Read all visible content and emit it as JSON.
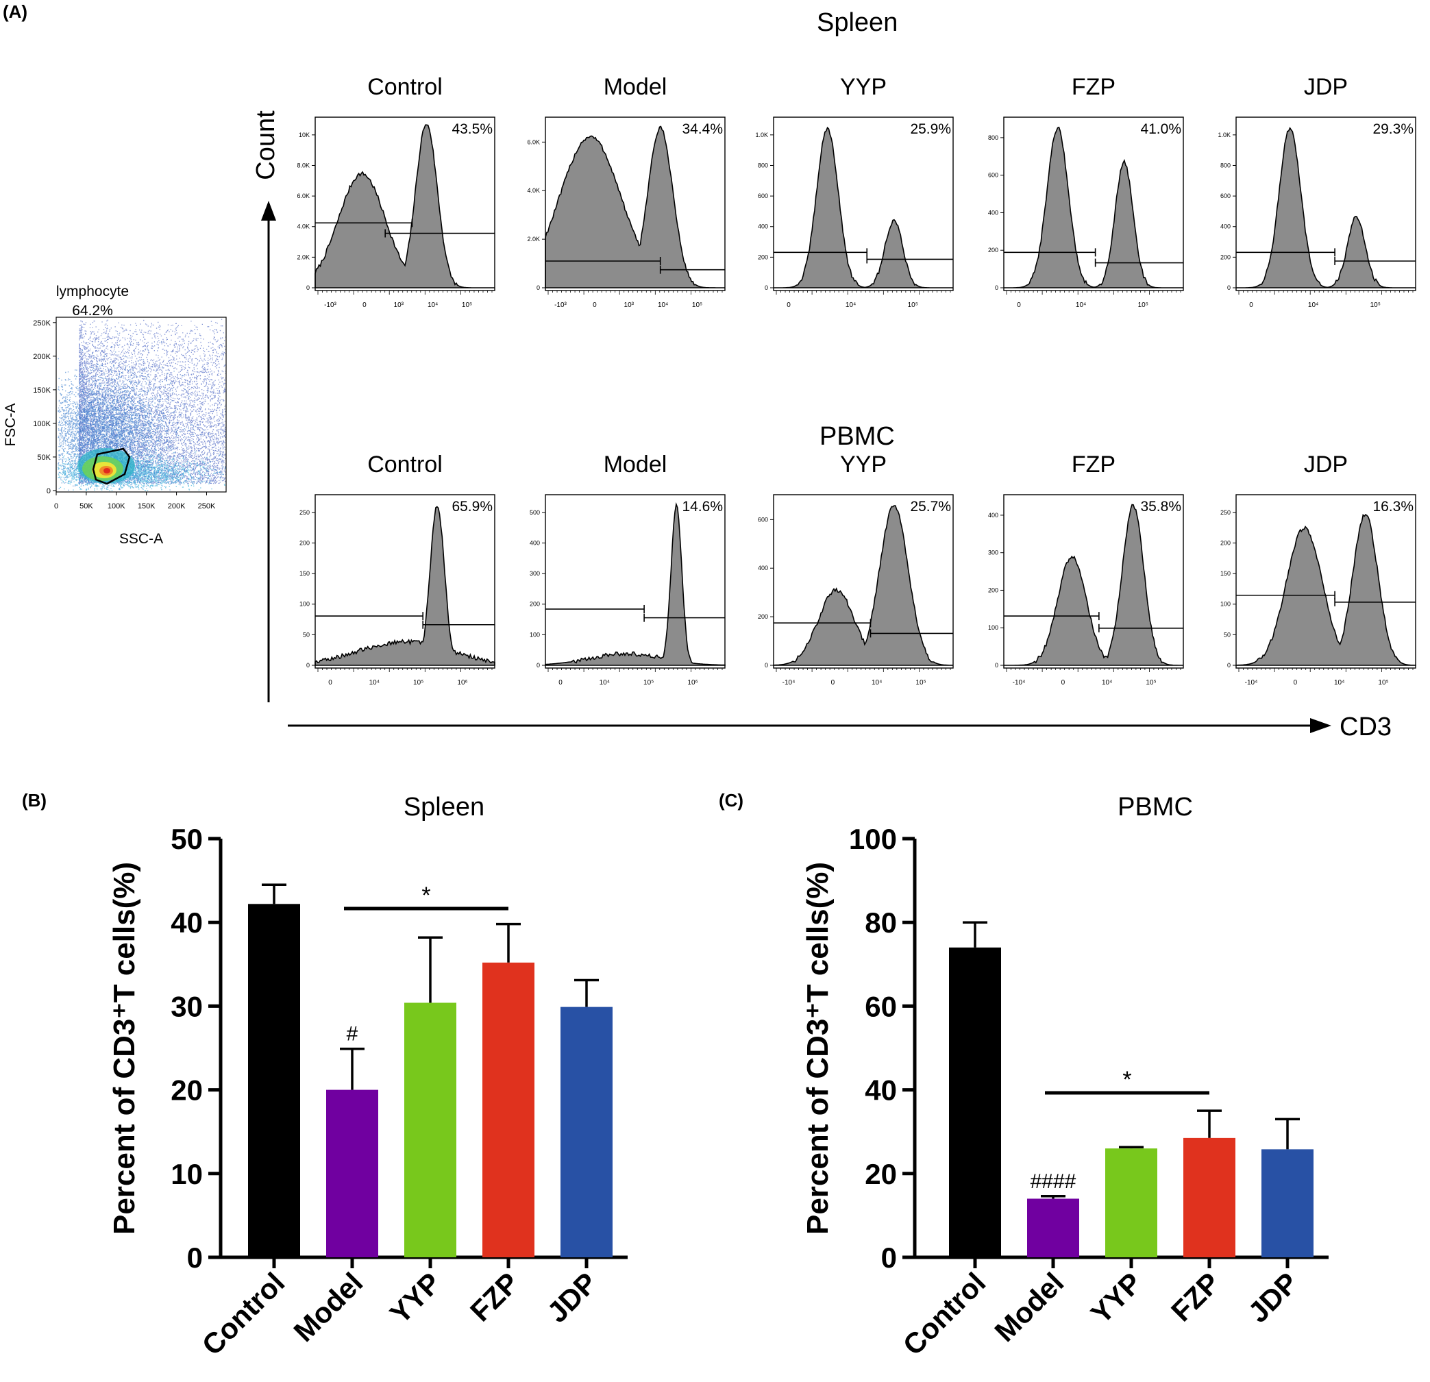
{
  "panel_labels": {
    "a": "(A)",
    "b": "(B)",
    "c": "(C)"
  },
  "section_titles": {
    "spleen": "Spleen",
    "pbmc": "PBMC"
  },
  "axes": {
    "count": "Count",
    "cd3": "CD3"
  },
  "scatter": {
    "gate_name": "lymphocyte",
    "gate_percent": "64.2%",
    "xlabel": "SSC-A",
    "ylabel": "FSC-A",
    "x_ticks": [
      "0",
      "50K",
      "100K",
      "150K",
      "200K",
      "250K"
    ],
    "y_ticks": [
      "0",
      "50K",
      "100K",
      "150K",
      "200K",
      "250K"
    ]
  },
  "histograms": {
    "spleen": [
      {
        "group": "Control",
        "percent": "43.5%",
        "y_ticks": [
          "0",
          "2.0K",
          "4.0K",
          "6.0K",
          "8.0K",
          "10K"
        ],
        "x_ticks": [
          "-10³",
          "0",
          "10³",
          "10⁴",
          "10⁵"
        ]
      },
      {
        "group": "Model",
        "percent": "34.4%",
        "y_ticks": [
          "0",
          "2.0K",
          "4.0K",
          "6.0K"
        ],
        "x_ticks": [
          "-10³",
          "0",
          "10³",
          "10⁴",
          "10⁵"
        ]
      },
      {
        "group": "YYP",
        "percent": "25.9%",
        "y_ticks": [
          "0",
          "200",
          "400",
          "600",
          "800",
          "1.0K"
        ],
        "x_ticks": [
          "0",
          "10⁴",
          "10⁵"
        ]
      },
      {
        "group": "FZP",
        "percent": "41.0%",
        "y_ticks": [
          "0",
          "200",
          "400",
          "600",
          "800"
        ],
        "x_ticks": [
          "0",
          "10⁴",
          "10⁵"
        ]
      },
      {
        "group": "JDP",
        "percent": "29.3%",
        "y_ticks": [
          "0",
          "200",
          "400",
          "600",
          "800",
          "1.0K"
        ],
        "x_ticks": [
          "0",
          "10⁴",
          "10⁵"
        ]
      }
    ],
    "pbmc": [
      {
        "group": "Control",
        "percent": "65.9%",
        "y_ticks": [
          "0",
          "50",
          "100",
          "150",
          "200",
          "250"
        ],
        "x_ticks": [
          "0",
          "10⁴",
          "10⁵",
          "10⁶"
        ]
      },
      {
        "group": "Model",
        "percent": "14.6%",
        "y_ticks": [
          "0",
          "100",
          "200",
          "300",
          "400",
          "500"
        ],
        "x_ticks": [
          "0",
          "10⁴",
          "10⁵",
          "10⁶"
        ]
      },
      {
        "group": "YYP",
        "percent": "25.7%",
        "y_ticks": [
          "0",
          "200",
          "400",
          "600"
        ],
        "x_ticks": [
          "-10⁴",
          "0",
          "10⁴",
          "10⁵"
        ]
      },
      {
        "group": "FZP",
        "percent": "35.8%",
        "y_ticks": [
          "0",
          "100",
          "200",
          "300",
          "400"
        ],
        "x_ticks": [
          "-10⁴",
          "0",
          "10⁴",
          "10⁵"
        ]
      },
      {
        "group": "JDP",
        "percent": "16.3%",
        "y_ticks": [
          "0",
          "50",
          "100",
          "150",
          "200",
          "250"
        ],
        "x_ticks": [
          "-10⁴",
          "0",
          "10⁴",
          "10⁵"
        ]
      }
    ]
  },
  "chart_data": [
    {
      "type": "bar",
      "title": "Spleen",
      "ylabel": "Percent of CD3⁺T cells(%)",
      "categories": [
        "Control",
        "Model",
        "YYP",
        "FZP",
        "JDP"
      ],
      "values": [
        42.2,
        20.0,
        30.4,
        35.2,
        29.9
      ],
      "errors": [
        2.3,
        4.9,
        7.8,
        4.6,
        3.2
      ],
      "colors": [
        "#000000",
        "#7000a0",
        "#78c81c",
        "#e0321e",
        "#2851a5"
      ],
      "ylim": [
        0,
        50
      ],
      "yticks": [
        0,
        10,
        20,
        30,
        40,
        50
      ],
      "markers": [
        "",
        "#",
        "",
        "",
        ""
      ],
      "significance": {
        "from": 1,
        "to": 3,
        "label": "*"
      }
    },
    {
      "type": "bar",
      "title": "PBMC",
      "ylabel": "Percent of CD3⁺T cells(%)",
      "categories": [
        "Control",
        "Model",
        "YYP",
        "FZP",
        "JDP"
      ],
      "values": [
        74,
        14,
        26,
        28.5,
        25.8
      ],
      "errors": [
        6,
        0.6,
        0.3,
        6.5,
        7.2
      ],
      "colors": [
        "#000000",
        "#7000a0",
        "#78c81c",
        "#e0321e",
        "#2851a5"
      ],
      "ylim": [
        0,
        100
      ],
      "yticks": [
        0,
        20,
        40,
        60,
        80,
        100
      ],
      "markers": [
        "",
        "####",
        "",
        "",
        ""
      ],
      "significance": {
        "from": 1,
        "to": 3,
        "label": "*"
      }
    }
  ]
}
